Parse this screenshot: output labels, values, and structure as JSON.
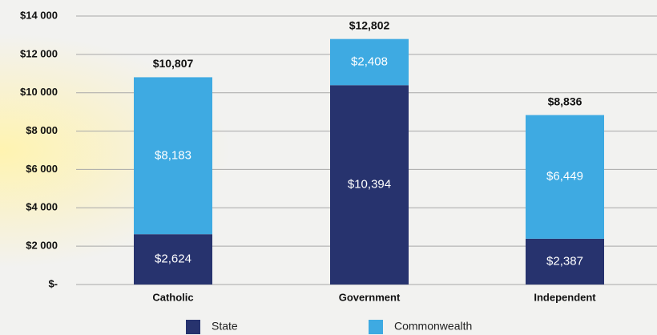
{
  "chart_data": {
    "type": "stacked_bar",
    "categories": [
      "Catholic",
      "Government",
      "Independent"
    ],
    "series": [
      {
        "name": "State",
        "color": "#27336e",
        "values": [
          2624,
          10394,
          2387
        ],
        "value_labels": [
          "$2,624",
          "$10,394",
          "$2,387"
        ]
      },
      {
        "name": "Commonwealth",
        "color": "#3eaae2",
        "values": [
          8183,
          2408,
          6449
        ],
        "value_labels": [
          "$8,183",
          "$2,408",
          "$6,449"
        ]
      }
    ],
    "total_labels": [
      "$10,807",
      "$12,802",
      "$8,836"
    ],
    "ylim": [
      0,
      14000
    ],
    "yticks": [
      {
        "value": 0,
        "label": "$-"
      },
      {
        "value": 2000,
        "label": "$2 000"
      },
      {
        "value": 4000,
        "label": "$4 000"
      },
      {
        "value": 6000,
        "label": "$6 000"
      },
      {
        "value": 8000,
        "label": "$8 000"
      },
      {
        "value": 10000,
        "label": "$10 000"
      },
      {
        "value": 12000,
        "label": "$12 000"
      },
      {
        "value": 14000,
        "label": "$14 000"
      }
    ],
    "grid": true
  }
}
